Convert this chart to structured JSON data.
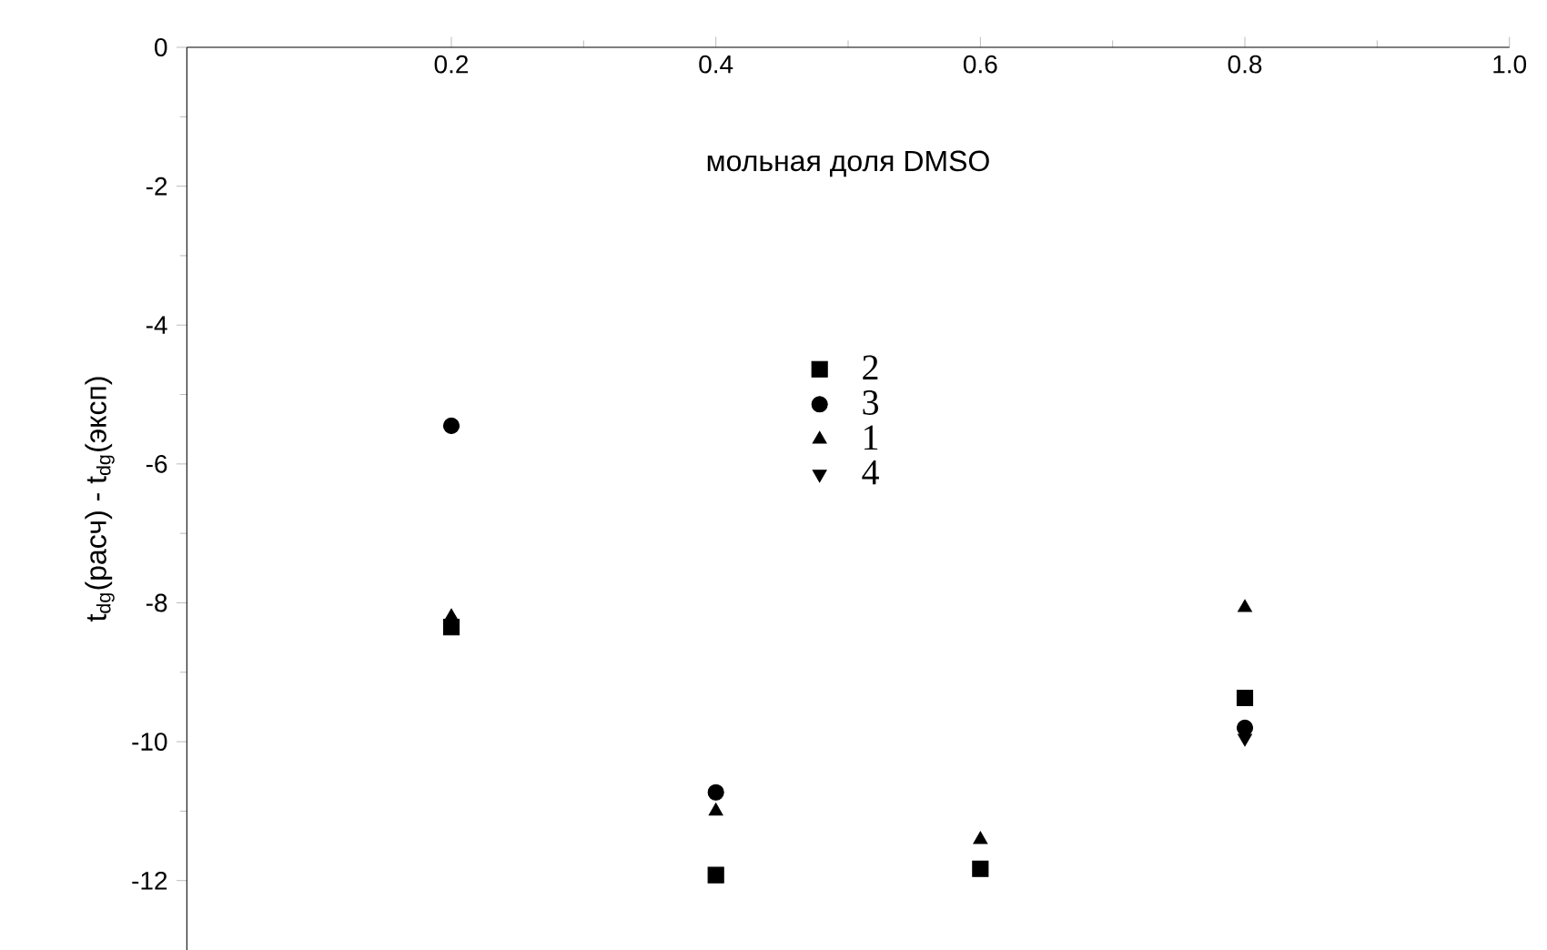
{
  "chart_data": {
    "type": "scatter",
    "xlabel": "мольная доля DMSO",
    "ylabel": "t$_{dg}$(расч) - t$_{dg}$(эксп)",
    "x": [
      0.2,
      0.4,
      0.6,
      0.8
    ],
    "series": [
      {
        "name": "2",
        "color": "#000000",
        "marker": "square",
        "values": [
          -8.35,
          -11.92,
          -11.83,
          -9.37
        ]
      },
      {
        "name": "3",
        "color": "#000000",
        "marker": "circle",
        "values": [
          -5.45,
          -10.73,
          null,
          -9.8
        ]
      },
      {
        "name": "1",
        "color": "#000000",
        "marker": "triangle",
        "values": [
          -8.2,
          -11.0,
          -11.41,
          -8.07
        ]
      },
      {
        "name": "4",
        "color": "#000000",
        "marker": "triangle-down",
        "values": [
          null,
          null,
          null,
          -9.95
        ]
      }
    ],
    "xlim": [
      0,
      1.0
    ],
    "xticks": [
      0.2,
      0.4,
      0.6,
      0.8,
      {
        "value": 1.0,
        "label": "1.0"
      }
    ],
    "ylim": [
      -13,
      0
    ],
    "yticks": [
      0,
      -2,
      -4,
      -6,
      -8,
      -10,
      -12
    ],
    "legend": "top",
    "grid": false
  }
}
